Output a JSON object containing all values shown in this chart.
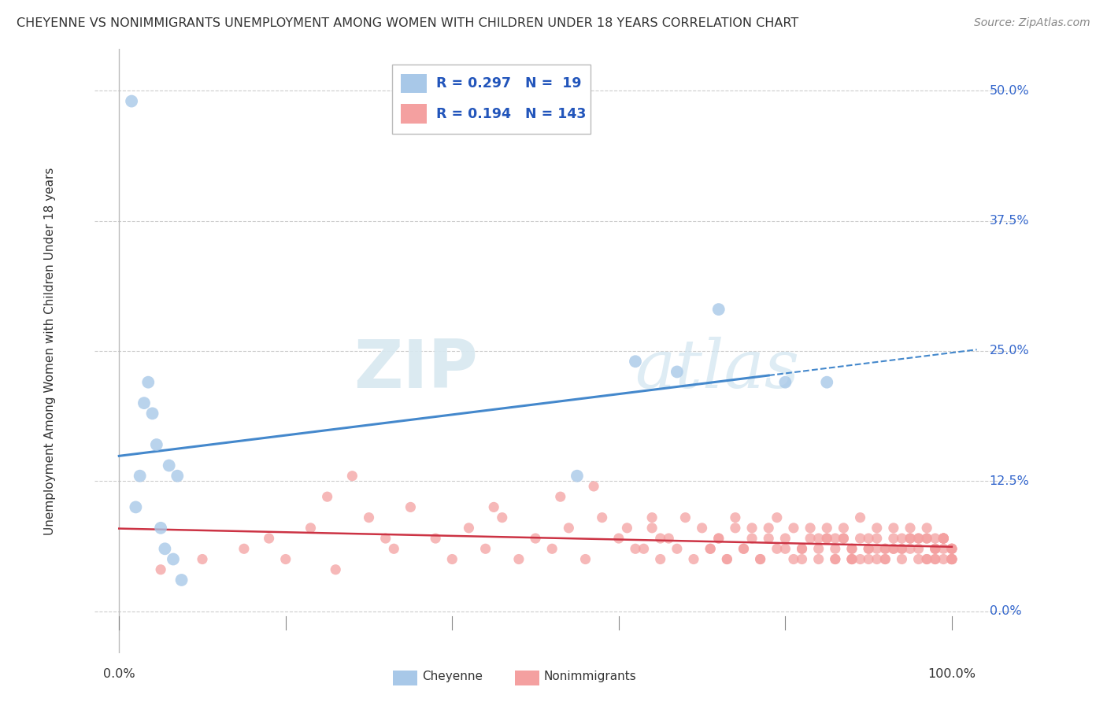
{
  "title": "CHEYENNE VS NONIMMIGRANTS UNEMPLOYMENT AMONG WOMEN WITH CHILDREN UNDER 18 YEARS CORRELATION CHART",
  "source": "Source: ZipAtlas.com",
  "ylabel": "Unemployment Among Women with Children Under 18 years",
  "ytick_labels": [
    "0.0%",
    "12.5%",
    "25.0%",
    "37.5%",
    "50.0%"
  ],
  "ytick_values": [
    0.0,
    12.5,
    25.0,
    37.5,
    50.0
  ],
  "xlim": [
    0,
    100
  ],
  "ylim": [
    0,
    50
  ],
  "cheyenne_color": "#a8c8e8",
  "nonimmigrant_color": "#f4a0a0",
  "cheyenne_line_color": "#4488cc",
  "nonimmigrant_line_color": "#cc3344",
  "background_color": "#ffffff",
  "watermark_zip": "ZIP",
  "watermark_atlas": "atlas",
  "cheyenne_x": [
    1.5,
    2.0,
    2.5,
    3.0,
    3.5,
    4.0,
    4.5,
    5.0,
    5.5,
    6.0,
    6.5,
    7.0,
    7.5,
    55,
    62,
    67,
    72,
    80,
    85
  ],
  "cheyenne_y": [
    49,
    10,
    13,
    20,
    22,
    19,
    16,
    8,
    6,
    14,
    5,
    13,
    3,
    13,
    24,
    23,
    29,
    22,
    22
  ],
  "ni_x": [
    15,
    18,
    20,
    23,
    26,
    30,
    33,
    35,
    38,
    40,
    42,
    44,
    46,
    48,
    50,
    52,
    54,
    56,
    58,
    60,
    62,
    64,
    65,
    66,
    67,
    68,
    69,
    70,
    71,
    72,
    73,
    74,
    75,
    76,
    77,
    78,
    79,
    80,
    81,
    82,
    83,
    84,
    85,
    86,
    87,
    88,
    89,
    90,
    91,
    92,
    93,
    94,
    95,
    96,
    97,
    98,
    99,
    100,
    5,
    10,
    25,
    28,
    32,
    45,
    53,
    57,
    61,
    63,
    64,
    65,
    71,
    72,
    73,
    74,
    75,
    76,
    77,
    78,
    79,
    80,
    81,
    82,
    83,
    84,
    85,
    86,
    87,
    88,
    89,
    90,
    91,
    92,
    93,
    94,
    95,
    96,
    97,
    98,
    99,
    100,
    82,
    84,
    86,
    88,
    90,
    92,
    94,
    96,
    98,
    100,
    85,
    88,
    91,
    94,
    97,
    100,
    86,
    89,
    93,
    96,
    99,
    100,
    87,
    91,
    95,
    99,
    88,
    92,
    97,
    100,
    90,
    95,
    100,
    93,
    98,
    97,
    98,
    99,
    100,
    98,
    99,
    100,
    99
  ],
  "ni_y": [
    6,
    7,
    5,
    8,
    4,
    9,
    6,
    10,
    7,
    5,
    8,
    6,
    9,
    5,
    7,
    6,
    8,
    5,
    9,
    7,
    6,
    8,
    5,
    7,
    6,
    9,
    5,
    8,
    6,
    7,
    5,
    9,
    6,
    8,
    5,
    7,
    9,
    6,
    8,
    5,
    7,
    6,
    8,
    5,
    7,
    6,
    9,
    5,
    7,
    6,
    8,
    5,
    7,
    6,
    8,
    5,
    7,
    6,
    4,
    5,
    11,
    13,
    7,
    10,
    11,
    12,
    8,
    6,
    9,
    7,
    6,
    7,
    5,
    8,
    6,
    7,
    5,
    8,
    6,
    7,
    5,
    6,
    8,
    5,
    7,
    6,
    8,
    5,
    7,
    6,
    8,
    5,
    7,
    6,
    8,
    5,
    7,
    6,
    7,
    5,
    6,
    7,
    5,
    6,
    7,
    5,
    6,
    7,
    5,
    6,
    7,
    5,
    6,
    7,
    5,
    6,
    7,
    5,
    6,
    7,
    5,
    6,
    7,
    5,
    6,
    7,
    5,
    6,
    7,
    5,
    6,
    7,
    5,
    6,
    7,
    5,
    6,
    7,
    5,
    6,
    7,
    5,
    6
  ]
}
